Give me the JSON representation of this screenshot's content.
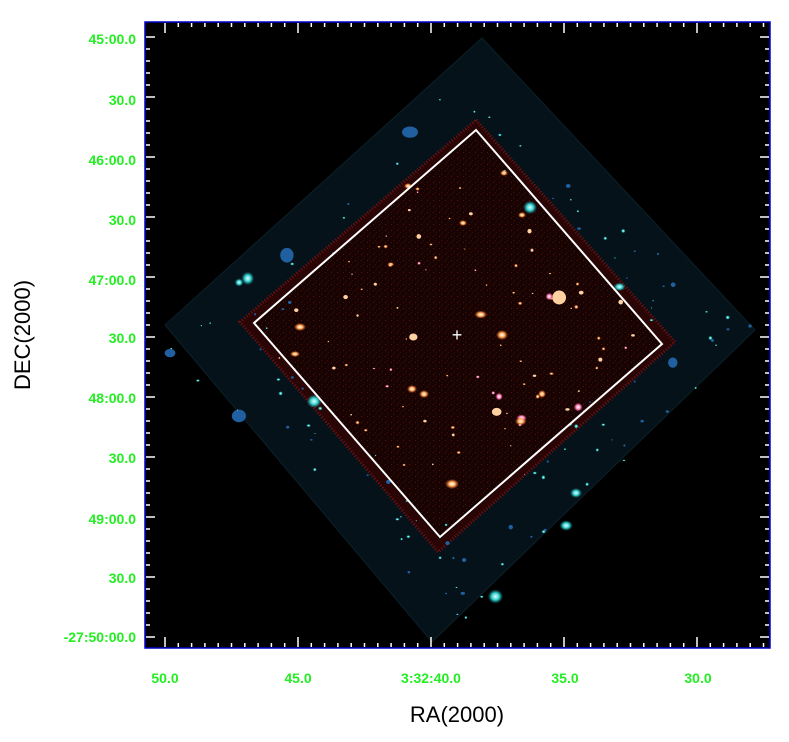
{
  "figure": {
    "x_axis": {
      "title": "RA(2000)",
      "tick_labels": [
        "50.0",
        "45.0",
        "3:32:40.0",
        "35.0",
        "30.0"
      ]
    },
    "y_axis": {
      "title": "DEC(2000)",
      "tick_labels": [
        "45:00.0",
        "30.0",
        "46:00.0",
        "30.0",
        "47:00.0",
        "30.0",
        "48:00.0",
        "30.0",
        "49:00.0",
        "30.0",
        "-27:50:00.0"
      ]
    },
    "colors": {
      "tick_label": "#22ee22",
      "frame": "#0000cc",
      "field_outline": "#ffffff",
      "background": "#000000",
      "outer_mosaic": "#0a1a22",
      "inner_field": "#1a0404"
    },
    "center_marker": "+"
  }
}
